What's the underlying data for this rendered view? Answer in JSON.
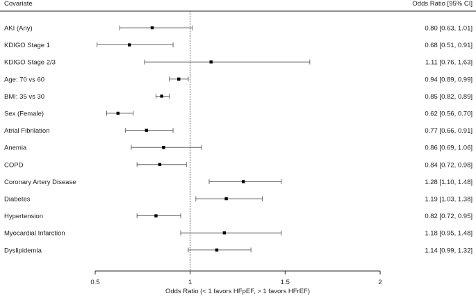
{
  "chart_data": {
    "type": "forest",
    "header": {
      "left": "Covariate",
      "right": "Odds Ratio [95% CI]"
    },
    "xlabel": "Odds Ratio (< 1 favors HFpEF, > 1 favors HFrEF)",
    "xlim": [
      0.5,
      2
    ],
    "x_ticks": [
      "0.5",
      "1",
      "1.5",
      "2"
    ],
    "x_tick_values": [
      0.5,
      1,
      1.5,
      2
    ],
    "reference_line": 1,
    "rows": [
      {
        "label": "AKI (Any)",
        "or": 0.8,
        "lo": 0.63,
        "hi": 1.01,
        "text": "0.80 [0.63, 1.01]"
      },
      {
        "label": "KDIGO Stage 1",
        "or": 0.68,
        "lo": 0.51,
        "hi": 0.91,
        "text": "0.68 [0.51, 0.91]"
      },
      {
        "label": "KDIGO Stage 2/3",
        "or": 1.11,
        "lo": 0.76,
        "hi": 1.63,
        "text": "1.11 [0.76, 1.63]"
      },
      {
        "label": "Age: 70 vs 60",
        "or": 0.94,
        "lo": 0.89,
        "hi": 0.99,
        "text": "0.94 [0.89, 0.99]"
      },
      {
        "label": "BMI: 35 vs 30",
        "or": 0.85,
        "lo": 0.82,
        "hi": 0.89,
        "text": "0.85 [0.82, 0.89]"
      },
      {
        "label": "Sex (Female)",
        "or": 0.62,
        "lo": 0.56,
        "hi": 0.7,
        "text": "0.62 [0.56, 0.70]"
      },
      {
        "label": "Atrial Fibrilation",
        "or": 0.77,
        "lo": 0.66,
        "hi": 0.91,
        "text": "0.77 [0.66, 0.91]"
      },
      {
        "label": "Anemia",
        "or": 0.86,
        "lo": 0.69,
        "hi": 1.06,
        "text": "0.86 [0.69, 1.06]"
      },
      {
        "label": "COPD",
        "or": 0.84,
        "lo": 0.72,
        "hi": 0.98,
        "text": "0.84 [0.72, 0.98]"
      },
      {
        "label": "Coronary Artery Disease",
        "or": 1.28,
        "lo": 1.1,
        "hi": 1.48,
        "text": "1.28 [1.10, 1.48]"
      },
      {
        "label": "Diabetes",
        "or": 1.19,
        "lo": 1.03,
        "hi": 1.38,
        "text": "1.19 [1.03, 1.38]"
      },
      {
        "label": "Hypertension",
        "or": 0.82,
        "lo": 0.72,
        "hi": 0.95,
        "text": "0.82 [0.72, 0.95]"
      },
      {
        "label": "Myocardial Infarction",
        "or": 1.18,
        "lo": 0.95,
        "hi": 1.48,
        "text": "1.18 [0.95, 1.48]"
      },
      {
        "label": "Dyslipidemia",
        "or": 1.14,
        "lo": 0.99,
        "hi": 1.32,
        "text": "1.14 [0.99, 1.32]"
      }
    ]
  }
}
